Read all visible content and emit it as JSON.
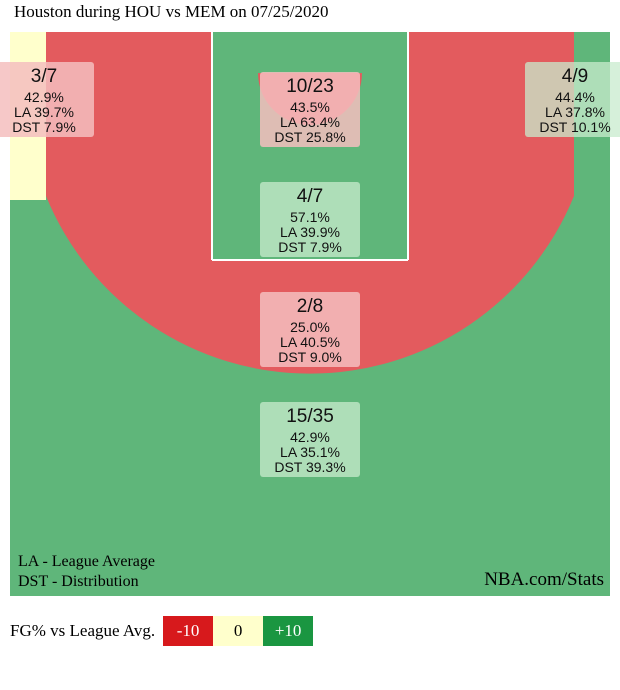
{
  "title": "Houston during HOU vs MEM on 07/25/2020",
  "chart_data": {
    "type": "shot-chart",
    "zones": [
      {
        "id": "left-corner-3",
        "made": 3,
        "attempts": 7,
        "fraction": "3/7",
        "fg_pct": "42.9%",
        "league_avg": "LA 39.7%",
        "distribution": "DST 7.9%",
        "rating": "neutral"
      },
      {
        "id": "restricted-area",
        "made": 10,
        "attempts": 23,
        "fraction": "10/23",
        "fg_pct": "43.5%",
        "league_avg": "LA 63.4%",
        "distribution": "DST 25.8%",
        "rating": "below"
      },
      {
        "id": "right-corner-3",
        "made": 4,
        "attempts": 9,
        "fraction": "4/9",
        "fg_pct": "44.4%",
        "league_avg": "LA 37.8%",
        "distribution": "DST 10.1%",
        "rating": "above"
      },
      {
        "id": "paint-non-ra",
        "made": 4,
        "attempts": 7,
        "fraction": "4/7",
        "fg_pct": "57.1%",
        "league_avg": "LA 39.9%",
        "distribution": "DST 7.9%",
        "rating": "above"
      },
      {
        "id": "mid-range",
        "made": 2,
        "attempts": 8,
        "fraction": "2/8",
        "fg_pct": "25.0%",
        "league_avg": "LA 40.5%",
        "distribution": "DST 9.0%",
        "rating": "below"
      },
      {
        "id": "above-break-3",
        "made": 15,
        "attempts": 35,
        "fraction": "15/35",
        "fg_pct": "42.9%",
        "league_avg": "LA 35.1%",
        "distribution": "DST 39.3%",
        "rating": "above"
      }
    ],
    "colors": {
      "above": "#5fb67a",
      "below": "#e35b5e",
      "neutral": "#ffffcc"
    },
    "notes": [
      "LA - League Average",
      "DST - Distribution"
    ],
    "source": "NBA.com/Stats"
  },
  "legend": {
    "label": "FG% vs League Avg.",
    "items": [
      {
        "text": "-10",
        "bg": "#d7191c",
        "fg": "#ffffff"
      },
      {
        "text": "0",
        "bg": "#ffffcc",
        "fg": "#000000"
      },
      {
        "text": "+10",
        "bg": "#1a9641",
        "fg": "#ffffff"
      }
    ]
  }
}
